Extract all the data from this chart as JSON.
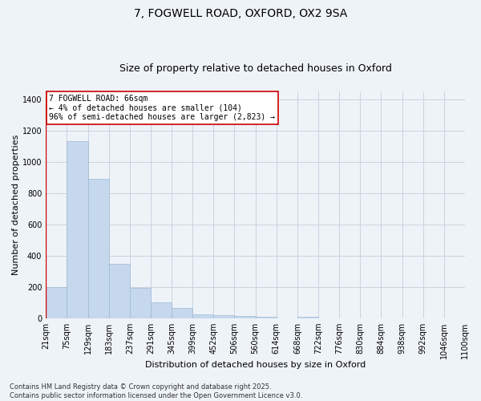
{
  "title_line1": "7, FOGWELL ROAD, OXFORD, OX2 9SA",
  "title_line2": "Size of property relative to detached houses in Oxford",
  "xlabel": "Distribution of detached houses by size in Oxford",
  "ylabel": "Number of detached properties",
  "bin_labels": [
    "21sqm",
    "75sqm",
    "129sqm",
    "183sqm",
    "237sqm",
    "291sqm",
    "345sqm",
    "399sqm",
    "452sqm",
    "506sqm",
    "560sqm",
    "614sqm",
    "668sqm",
    "722sqm",
    "776sqm",
    "830sqm",
    "884sqm",
    "938sqm",
    "992sqm",
    "1046sqm",
    "1100sqm"
  ],
  "bar_values": [
    200,
    1130,
    890,
    350,
    195,
    105,
    65,
    25,
    20,
    15,
    10,
    0,
    10,
    0,
    0,
    0,
    0,
    0,
    0,
    0
  ],
  "bar_color": "#c5d8ed",
  "bar_edge_color": "#a0b8d0",
  "grid_color": "#c8d4e0",
  "bg_color": "#eef3f8",
  "vline_color": "#cc0000",
  "annotation_text": "7 FOGWELL ROAD: 66sqm\n← 4% of detached houses are smaller (104)\n96% of semi-detached houses are larger (2,823) →",
  "annotation_box_color": "#ffffff",
  "annotation_border_color": "#cc0000",
  "ylim": [
    0,
    1450
  ],
  "yticks": [
    0,
    200,
    400,
    600,
    800,
    1000,
    1200,
    1400
  ],
  "footnote": "Contains HM Land Registry data © Crown copyright and database right 2025.\nContains public sector information licensed under the Open Government Licence v3.0.",
  "title_fontsize": 10,
  "subtitle_fontsize": 9,
  "label_fontsize": 8,
  "tick_fontsize": 7,
  "annot_fontsize": 7,
  "footnote_fontsize": 6
}
